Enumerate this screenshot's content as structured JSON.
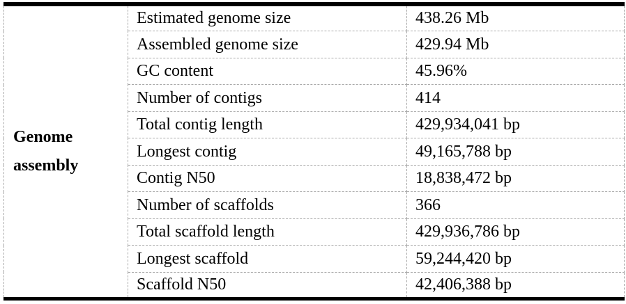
{
  "table": {
    "group_label": "Genome assembly",
    "rows": [
      {
        "label": "Estimated genome size",
        "value": "438.26 Mb"
      },
      {
        "label": "Assembled genome size",
        "value": "429.94 Mb"
      },
      {
        "label": "GC content",
        "value": "45.96%"
      },
      {
        "label": "Number of contigs",
        "value": "414"
      },
      {
        "label": "Total contig length",
        "value": "429,934,041 bp"
      },
      {
        "label": "Longest contig",
        "value": "49,165,788 bp"
      },
      {
        "label": "Contig N50",
        "value": "18,838,472 bp"
      },
      {
        "label": "Number of scaffolds",
        "value": "366"
      },
      {
        "label": "Total scaffold length",
        "value": "429,936,786 bp"
      },
      {
        "label": "Longest scaffold",
        "value": "59,244,420 bp"
      },
      {
        "label": "Scaffold N50",
        "value": "42,406,388 bp"
      }
    ],
    "colors": {
      "heavy_rule": "#000000",
      "gridline": "#a9a9a9",
      "text": "#000000",
      "background": "#ffffff"
    }
  }
}
